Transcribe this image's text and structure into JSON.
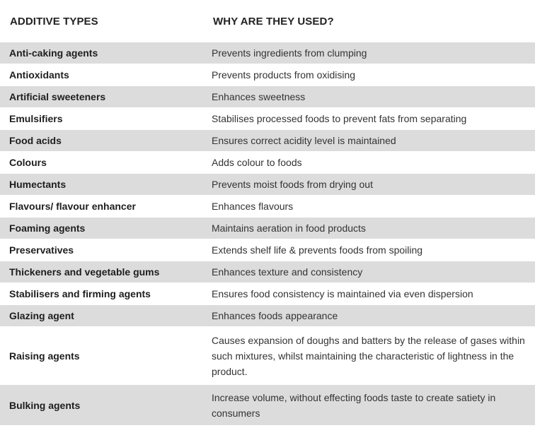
{
  "header": {
    "col1": "ADDITIVE TYPES",
    "col2": "WHY ARE THEY USED?"
  },
  "rows": [
    {
      "type": "Anti-caking agents",
      "why": "Prevents ingredients from clumping"
    },
    {
      "type": "Antioxidants",
      "why": "Prevents products from oxidising"
    },
    {
      "type": "Artificial sweeteners",
      "why": "Enhances sweetness"
    },
    {
      "type": "Emulsifiers",
      "why": "Stabilises processed foods to prevent fats from separating"
    },
    {
      "type": "Food acids",
      "why": "Ensures correct acidity level is maintained"
    },
    {
      "type": "Colours",
      "why": "Adds colour to foods"
    },
    {
      "type": "Humectants",
      "why": "Prevents moist foods from drying out"
    },
    {
      "type": "Flavours/ flavour enhancer",
      "why": "Enhances flavours"
    },
    {
      "type": "Foaming agents",
      "why": "Maintains aeration in food products"
    },
    {
      "type": "Preservatives",
      "why": "Extends shelf life & prevents foods from spoiling"
    },
    {
      "type": "Thickeners and vegetable gums",
      "why": "Enhances texture and consistency"
    },
    {
      "type": "Stabilisers and firming agents",
      "why": "Ensures food consistency is maintained via even dispersion"
    },
    {
      "type": "Glazing agent",
      "why": "Enhances foods appearance"
    },
    {
      "type": "Raising agents",
      "why": "Causes expansion of doughs and batters by the release of gases within such mixtures, whilst maintaining the characteristic of lightness in the product."
    },
    {
      "type": "Bulking agents",
      "why": "Increase volume, without effecting foods taste to create satiety in consumers"
    }
  ]
}
